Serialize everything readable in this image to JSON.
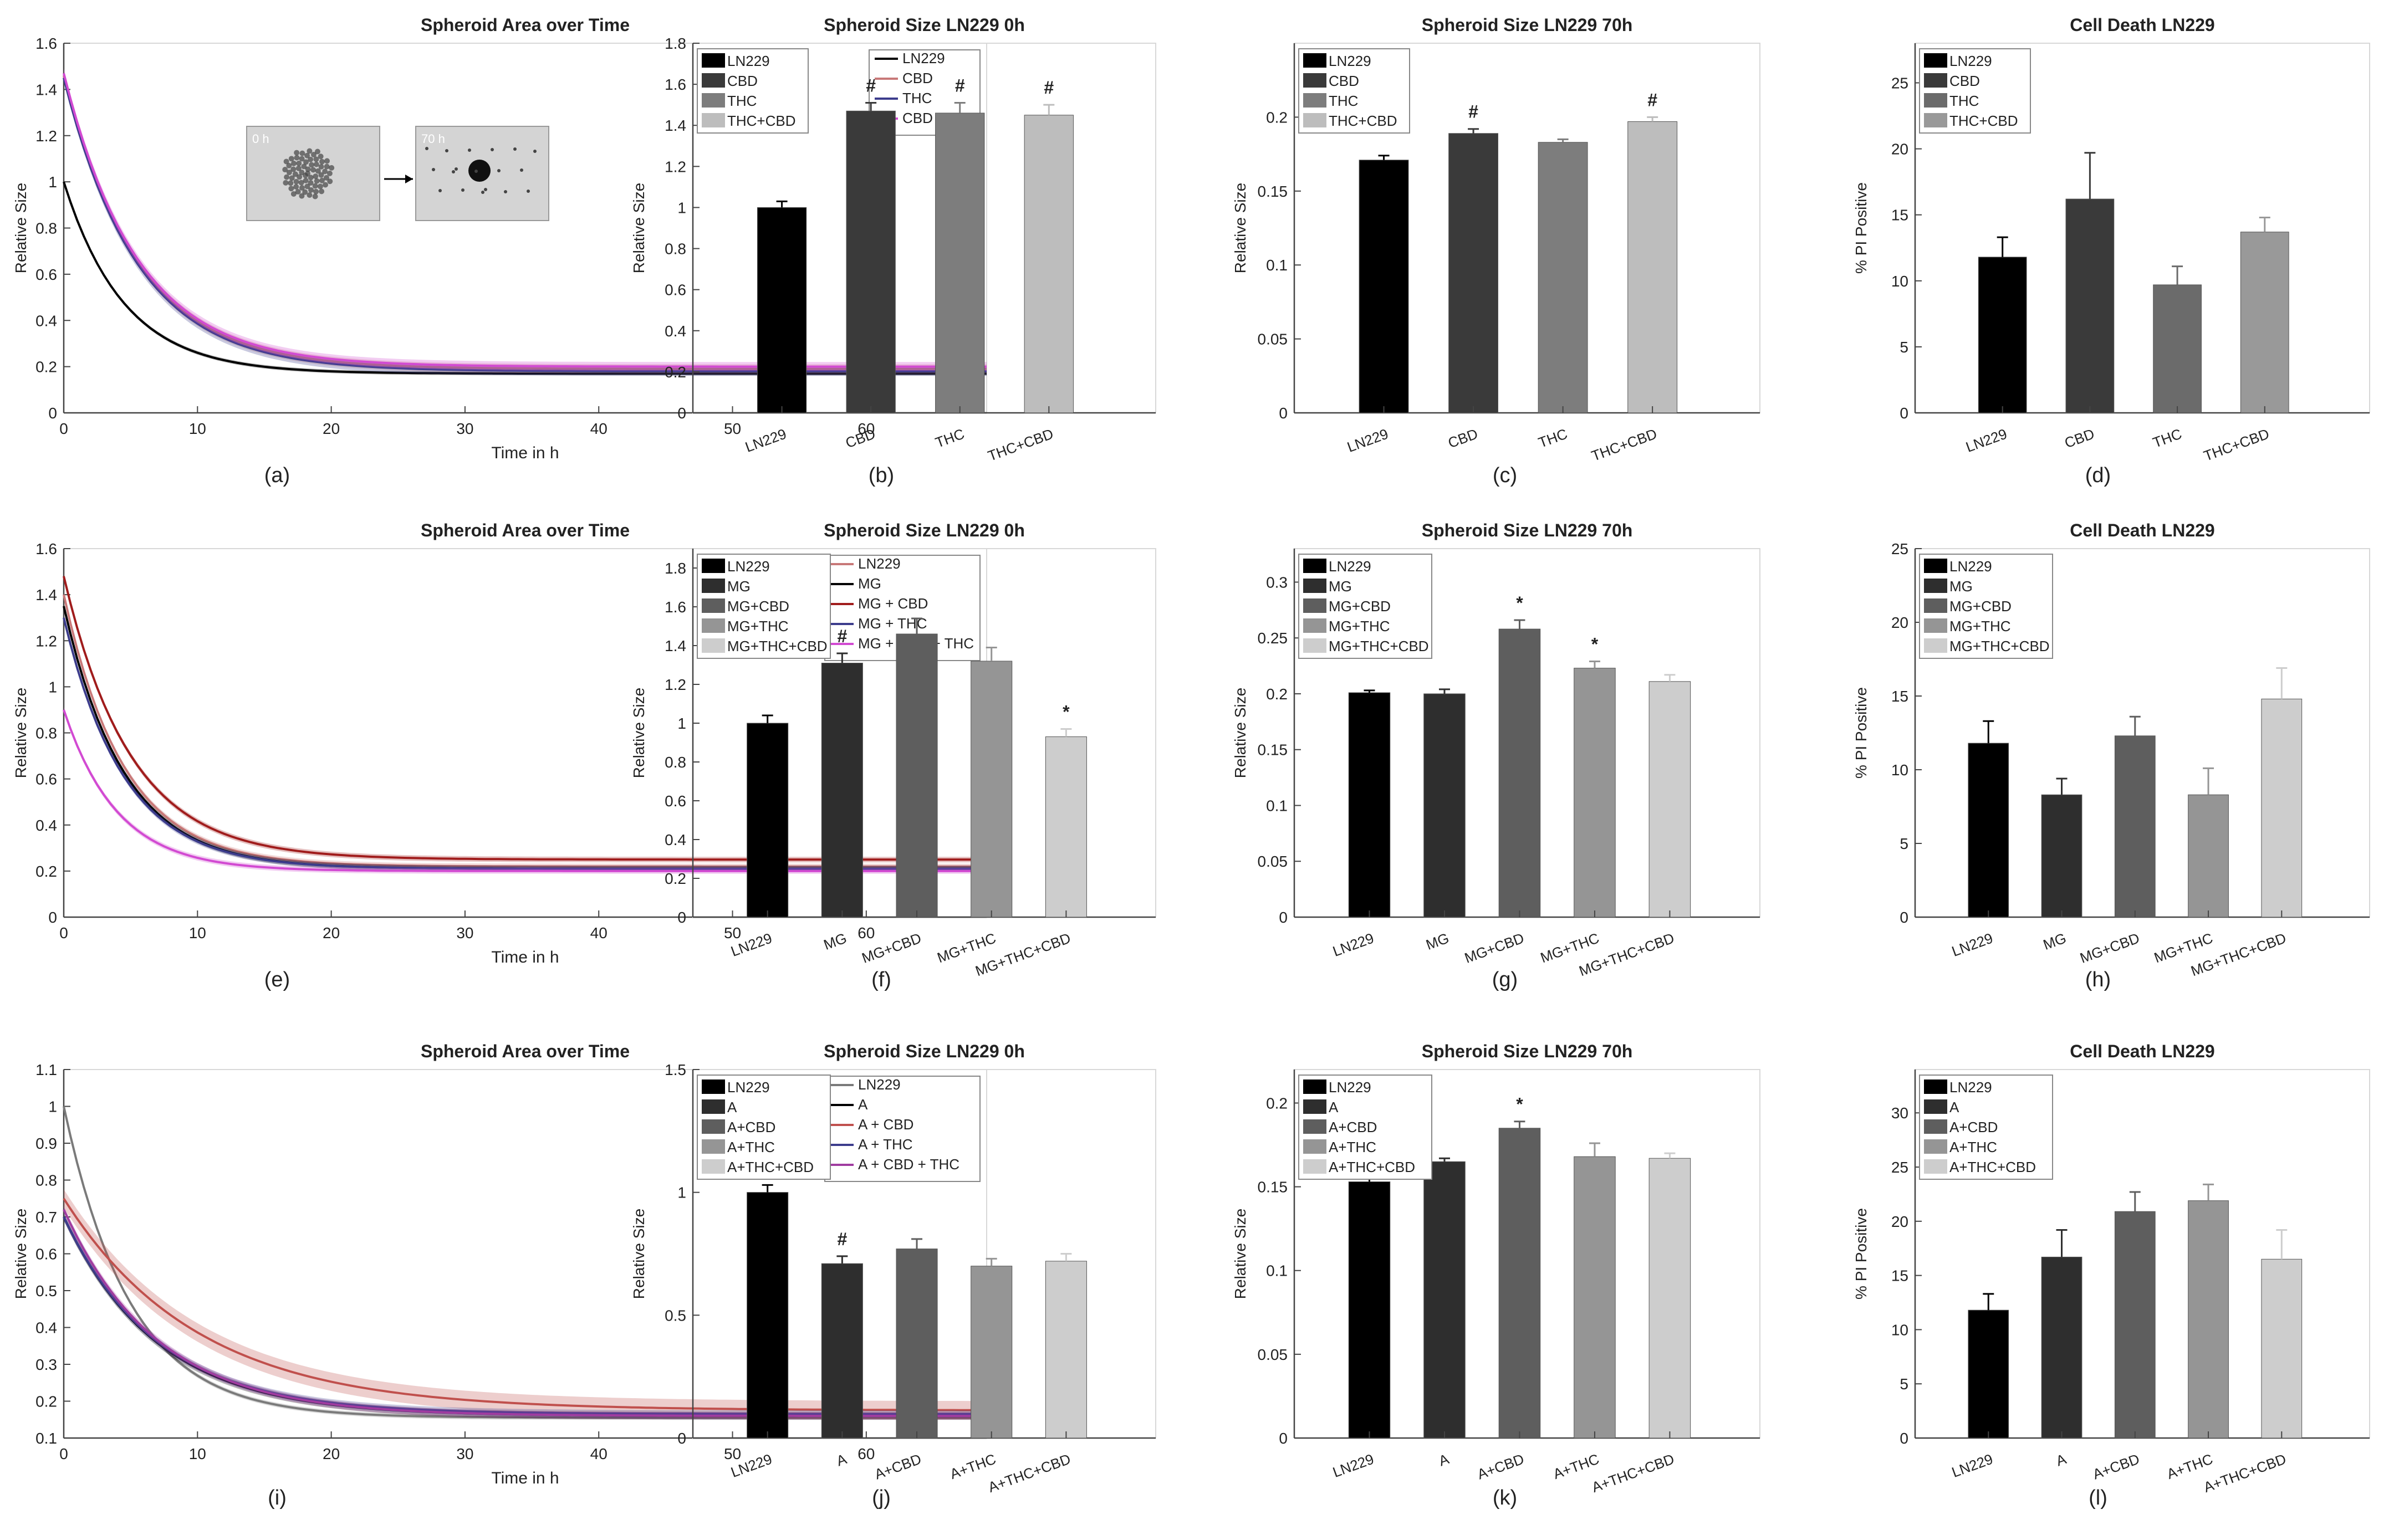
{
  "figure": {
    "panel_labels": [
      "(a)",
      "(b)",
      "(c)",
      "(d)",
      "(e)",
      "(f)",
      "(g)",
      "(h)",
      "(i)",
      "(j)",
      "(k)",
      "(l)"
    ],
    "colors": {
      "LN229": "#000000",
      "CBD": "#c87878",
      "THC": "#3c3c8c",
      "CBD + THC": "#d24ad2",
      "inset_dark": "#444444",
      "inset_light": "#d4d4d4"
    }
  },
  "chart_data": [
    {
      "panel": "(a)",
      "type": "line",
      "title": "Spheroid Area over Time",
      "xlabel": "Time in h",
      "ylabel": "Relative Size",
      "xlim": [
        0,
        69
      ],
      "ylim": [
        0,
        1.6
      ],
      "xticks": [
        0,
        10,
        20,
        30,
        40,
        50,
        60
      ],
      "yticks": [
        0,
        0.2,
        0.4,
        0.6,
        0.8,
        1,
        1.2,
        1.4,
        1.6
      ],
      "ytick_labels": [
        "0",
        "0.2",
        "0.4",
        "0.6",
        "0.8",
        "1",
        "1.2",
        "1.4",
        "1.6"
      ],
      "legend": "top-right",
      "inset": {
        "labels": [
          "0 h",
          "70 h"
        ]
      },
      "series": [
        {
          "name": "LN229",
          "color": "#000000",
          "start": 1.0,
          "end": 0.17,
          "tau": 4.5,
          "band": 0.008
        },
        {
          "name": "CBD",
          "color": "#c87878",
          "start": 1.46,
          "end": 0.19,
          "tau": 5.5,
          "band": 0.02
        },
        {
          "name": "THC",
          "color": "#3c3c8c",
          "start": 1.45,
          "end": 0.18,
          "tau": 5.5,
          "band": 0.02
        },
        {
          "name": "CBD + THC",
          "color": "#d24ad2",
          "start": 1.47,
          "end": 0.2,
          "tau": 5.5,
          "band": 0.02
        }
      ]
    },
    {
      "panel": "(b)",
      "type": "bar",
      "title": "Spheroid Size LN229 0h",
      "ylabel": "Relative Size",
      "ylim": [
        0,
        1.8
      ],
      "yticks": [
        0,
        0.2,
        0.4,
        0.6,
        0.8,
        1,
        1.2,
        1.4,
        1.6,
        1.8
      ],
      "ytick_labels": [
        "0",
        "0.2",
        "0.4",
        "0.6",
        "0.8",
        "1",
        "1.2",
        "1.4",
        "1.6",
        "1.8"
      ],
      "legend": "top-left",
      "categories": [
        "LN229",
        "CBD",
        "THC",
        "THC+CBD"
      ],
      "values": [
        1.0,
        1.47,
        1.46,
        1.45
      ],
      "errors": [
        0.03,
        0.04,
        0.05,
        0.05
      ],
      "annotations": [
        "",
        "#",
        "#",
        "#"
      ],
      "colors": [
        "#000000",
        "#3a3a3a",
        "#7d7d7d",
        "#bdbdbd"
      ]
    },
    {
      "panel": "(c)",
      "type": "bar",
      "title": "Spheroid Size LN229 70h",
      "ylabel": "Relative Size",
      "ylim": [
        0,
        0.25
      ],
      "yticks": [
        0,
        0.05,
        0.1,
        0.15,
        0.2
      ],
      "ytick_labels": [
        "0",
        "0.05",
        "0.1",
        "0.15",
        "0.2"
      ],
      "legend": "top-left",
      "categories": [
        "LN229",
        "CBD",
        "THC",
        "THC+CBD"
      ],
      "values": [
        0.171,
        0.189,
        0.183,
        0.197
      ],
      "errors": [
        0.003,
        0.003,
        0.002,
        0.003
      ],
      "annotations": [
        "",
        "#",
        "",
        "#"
      ],
      "colors": [
        "#000000",
        "#3a3a3a",
        "#7d7d7d",
        "#bdbdbd"
      ]
    },
    {
      "panel": "(d)",
      "type": "bar",
      "title": "Cell Death LN229",
      "ylabel": "% PI Positive",
      "ylim": [
        0,
        28
      ],
      "yticks": [
        0,
        5,
        10,
        15,
        20,
        25
      ],
      "ytick_labels": [
        "0",
        "5",
        "10",
        "15",
        "20",
        "25"
      ],
      "legend": "top-left",
      "categories": [
        "LN229",
        "CBD",
        "THC",
        "THC+CBD"
      ],
      "values": [
        11.8,
        16.2,
        9.7,
        13.7
      ],
      "errors": [
        1.5,
        3.5,
        1.4,
        1.1
      ],
      "annotations": [
        "",
        "",
        "",
        ""
      ],
      "colors": [
        "#000000",
        "#3a3a3a",
        "#6b6b6b",
        "#999999"
      ]
    },
    {
      "panel": "(e)",
      "type": "line",
      "title": "Spheroid Area over Time",
      "xlabel": "Time in h",
      "ylabel": "Relative Size",
      "xlim": [
        0,
        69
      ],
      "ylim": [
        0,
        1.6
      ],
      "xticks": [
        0,
        10,
        20,
        30,
        40,
        50,
        60
      ],
      "yticks": [
        0,
        0.2,
        0.4,
        0.6,
        0.8,
        1,
        1.2,
        1.4,
        1.6
      ],
      "ytick_labels": [
        "0",
        "0.2",
        "0.4",
        "0.6",
        "0.8",
        "1",
        "1.2",
        "1.4",
        "1.6"
      ],
      "legend": "top-right",
      "series": [
        {
          "name": "LN229",
          "color": "#c87878",
          "start": 1.4,
          "end": 0.22,
          "tau": 4.5,
          "band": 0.012
        },
        {
          "name": "MG",
          "color": "#000000",
          "start": 1.35,
          "end": 0.21,
          "tau": 4.5,
          "band": 0.012
        },
        {
          "name": "MG + CBD",
          "color": "#a01c1c",
          "start": 1.48,
          "end": 0.25,
          "tau": 5.0,
          "band": 0.012
        },
        {
          "name": "MG + THC",
          "color": "#3c3c8c",
          "start": 1.3,
          "end": 0.21,
          "tau": 4.5,
          "band": 0.012
        },
        {
          "name": "MG + CBD + THC",
          "color": "#d24ad2",
          "start": 0.9,
          "end": 0.2,
          "tau": 4.0,
          "band": 0.012
        }
      ]
    },
    {
      "panel": "(f)",
      "type": "bar",
      "title": "Spheroid Size LN229 0h",
      "ylabel": "Relative Size",
      "ylim": [
        0,
        1.9
      ],
      "yticks": [
        0,
        0.2,
        0.4,
        0.6,
        0.8,
        1,
        1.2,
        1.4,
        1.6,
        1.8
      ],
      "ytick_labels": [
        "0",
        "0.2",
        "0.4",
        "0.6",
        "0.8",
        "1",
        "1.2",
        "1.4",
        "1.6",
        "1.8"
      ],
      "legend": "top-left",
      "categories": [
        "LN229",
        "MG",
        "MG+CBD",
        "MG+THC",
        "MG+THC+CBD"
      ],
      "values": [
        1.0,
        1.31,
        1.46,
        1.32,
        0.93
      ],
      "errors": [
        0.04,
        0.05,
        0.08,
        0.07,
        0.04
      ],
      "annotations": [
        "",
        "#",
        "",
        "",
        "*"
      ],
      "colors": [
        "#000000",
        "#2e2e2e",
        "#5e5e5e",
        "#959595",
        "#cdcdcd"
      ]
    },
    {
      "panel": "(g)",
      "type": "bar",
      "title": "Spheroid Size LN229 70h",
      "ylabel": "Relative Size",
      "ylim": [
        0,
        0.33
      ],
      "yticks": [
        0,
        0.05,
        0.1,
        0.15,
        0.2,
        0.25,
        0.3
      ],
      "ytick_labels": [
        "0",
        "0.05",
        "0.1",
        "0.15",
        "0.2",
        "0.25",
        "0.3"
      ],
      "legend": "top-left",
      "categories": [
        "LN229",
        "MG",
        "MG+CBD",
        "MG+THC",
        "MG+THC+CBD"
      ],
      "values": [
        0.201,
        0.2,
        0.258,
        0.223,
        0.211
      ],
      "errors": [
        0.002,
        0.004,
        0.008,
        0.006,
        0.006
      ],
      "annotations": [
        "",
        "",
        "*",
        "*",
        ""
      ],
      "colors": [
        "#000000",
        "#2e2e2e",
        "#5e5e5e",
        "#959595",
        "#cdcdcd"
      ]
    },
    {
      "panel": "(h)",
      "type": "bar",
      "title": "Cell Death LN229",
      "ylabel": "% PI Positive",
      "ylim": [
        0,
        25
      ],
      "yticks": [
        0,
        5,
        10,
        15,
        20,
        25
      ],
      "ytick_labels": [
        "0",
        "5",
        "10",
        "15",
        "20",
        "25"
      ],
      "legend": "top-left",
      "categories": [
        "LN229",
        "MG",
        "MG+CBD",
        "MG+THC",
        "MG+THC+CBD"
      ],
      "values": [
        11.8,
        8.3,
        12.3,
        8.3,
        14.8
      ],
      "errors": [
        1.5,
        1.1,
        1.3,
        1.8,
        2.1
      ],
      "annotations": [
        "",
        "",
        "",
        "",
        ""
      ],
      "colors": [
        "#000000",
        "#2e2e2e",
        "#5e5e5e",
        "#959595",
        "#cdcdcd"
      ]
    },
    {
      "panel": "(i)",
      "type": "line",
      "title": "Spheroid Area over Time",
      "xlabel": "Time in h",
      "ylabel": "Relative Size",
      "xlim": [
        0,
        69
      ],
      "ylim": [
        0.1,
        1.1
      ],
      "xticks": [
        0,
        10,
        20,
        30,
        40,
        50,
        60
      ],
      "yticks": [
        0.1,
        0.2,
        0.3,
        0.4,
        0.5,
        0.6,
        0.7,
        0.8,
        0.9,
        1,
        1.1
      ],
      "ytick_labels": [
        "0.1",
        "0.2",
        "0.3",
        "0.4",
        "0.5",
        "0.6",
        "0.7",
        "0.8",
        "0.9",
        "1",
        "1.1"
      ],
      "legend": "top-right",
      "series": [
        {
          "name": "LN229",
          "color": "#7a7a7a",
          "start": 1.0,
          "end": 0.155,
          "tau": 5.0,
          "band": 0.006
        },
        {
          "name": "A",
          "color": "#000000",
          "start": 0.7,
          "end": 0.16,
          "tau": 7.0,
          "band": 0.01
        },
        {
          "name": "A + CBD",
          "color": "#c0504d",
          "start": 0.75,
          "end": 0.175,
          "tau": 10.0,
          "band": 0.025
        },
        {
          "name": "A + THC",
          "color": "#3c3c8c",
          "start": 0.7,
          "end": 0.165,
          "tau": 7.0,
          "band": 0.01
        },
        {
          "name": "A + CBD + THC",
          "color": "#a03ca0",
          "start": 0.72,
          "end": 0.16,
          "tau": 7.0,
          "band": 0.01
        }
      ]
    },
    {
      "panel": "(j)",
      "type": "bar",
      "title": "Spheroid Size LN229 0h",
      "ylabel": "Relative Size",
      "ylim": [
        0,
        1.5
      ],
      "yticks": [
        0,
        0.5,
        1,
        1.5
      ],
      "ytick_labels": [
        "0",
        "0.5",
        "1",
        "1.5"
      ],
      "legend": "top-left",
      "categories": [
        "LN229",
        "A",
        "A+CBD",
        "A+THC",
        "A+THC+CBD"
      ],
      "values": [
        1.0,
        0.71,
        0.77,
        0.7,
        0.72
      ],
      "errors": [
        0.03,
        0.03,
        0.04,
        0.03,
        0.03
      ],
      "annotations": [
        "",
        "#",
        "",
        "",
        ""
      ],
      "colors": [
        "#000000",
        "#2e2e2e",
        "#5e5e5e",
        "#959595",
        "#cdcdcd"
      ]
    },
    {
      "panel": "(k)",
      "type": "bar",
      "title": "Spheroid Size LN229 70h",
      "ylabel": "Relative Size",
      "ylim": [
        0,
        0.22
      ],
      "yticks": [
        0,
        0.05,
        0.1,
        0.15,
        0.2
      ],
      "ytick_labels": [
        "0",
        "0.05",
        "0.1",
        "0.15",
        "0.2"
      ],
      "legend": "top-left",
      "categories": [
        "LN229",
        "A",
        "A+CBD",
        "A+THC",
        "A+THC+CBD"
      ],
      "values": [
        0.153,
        0.165,
        0.185,
        0.168,
        0.167
      ],
      "errors": [
        0.004,
        0.002,
        0.004,
        0.008,
        0.003
      ],
      "annotations": [
        "",
        "",
        "*",
        "",
        ""
      ],
      "colors": [
        "#000000",
        "#2e2e2e",
        "#5e5e5e",
        "#959595",
        "#cdcdcd"
      ]
    },
    {
      "panel": "(l)",
      "type": "bar",
      "title": "Cell Death LN229",
      "ylabel": "% PI Positive",
      "ylim": [
        0,
        34
      ],
      "yticks": [
        0,
        5,
        10,
        15,
        20,
        25,
        30
      ],
      "ytick_labels": [
        "0",
        "5",
        "10",
        "15",
        "20",
        "25",
        "30"
      ],
      "legend": "top-left",
      "categories": [
        "LN229",
        "A",
        "A+CBD",
        "A+THC",
        "A+THC+CBD"
      ],
      "values": [
        11.8,
        16.7,
        20.9,
        21.9,
        16.5
      ],
      "errors": [
        1.5,
        2.5,
        1.8,
        1.5,
        2.7
      ],
      "annotations": [
        "",
        "",
        "",
        "",
        ""
      ],
      "colors": [
        "#000000",
        "#2e2e2e",
        "#5e5e5e",
        "#959595",
        "#cdcdcd"
      ]
    }
  ]
}
